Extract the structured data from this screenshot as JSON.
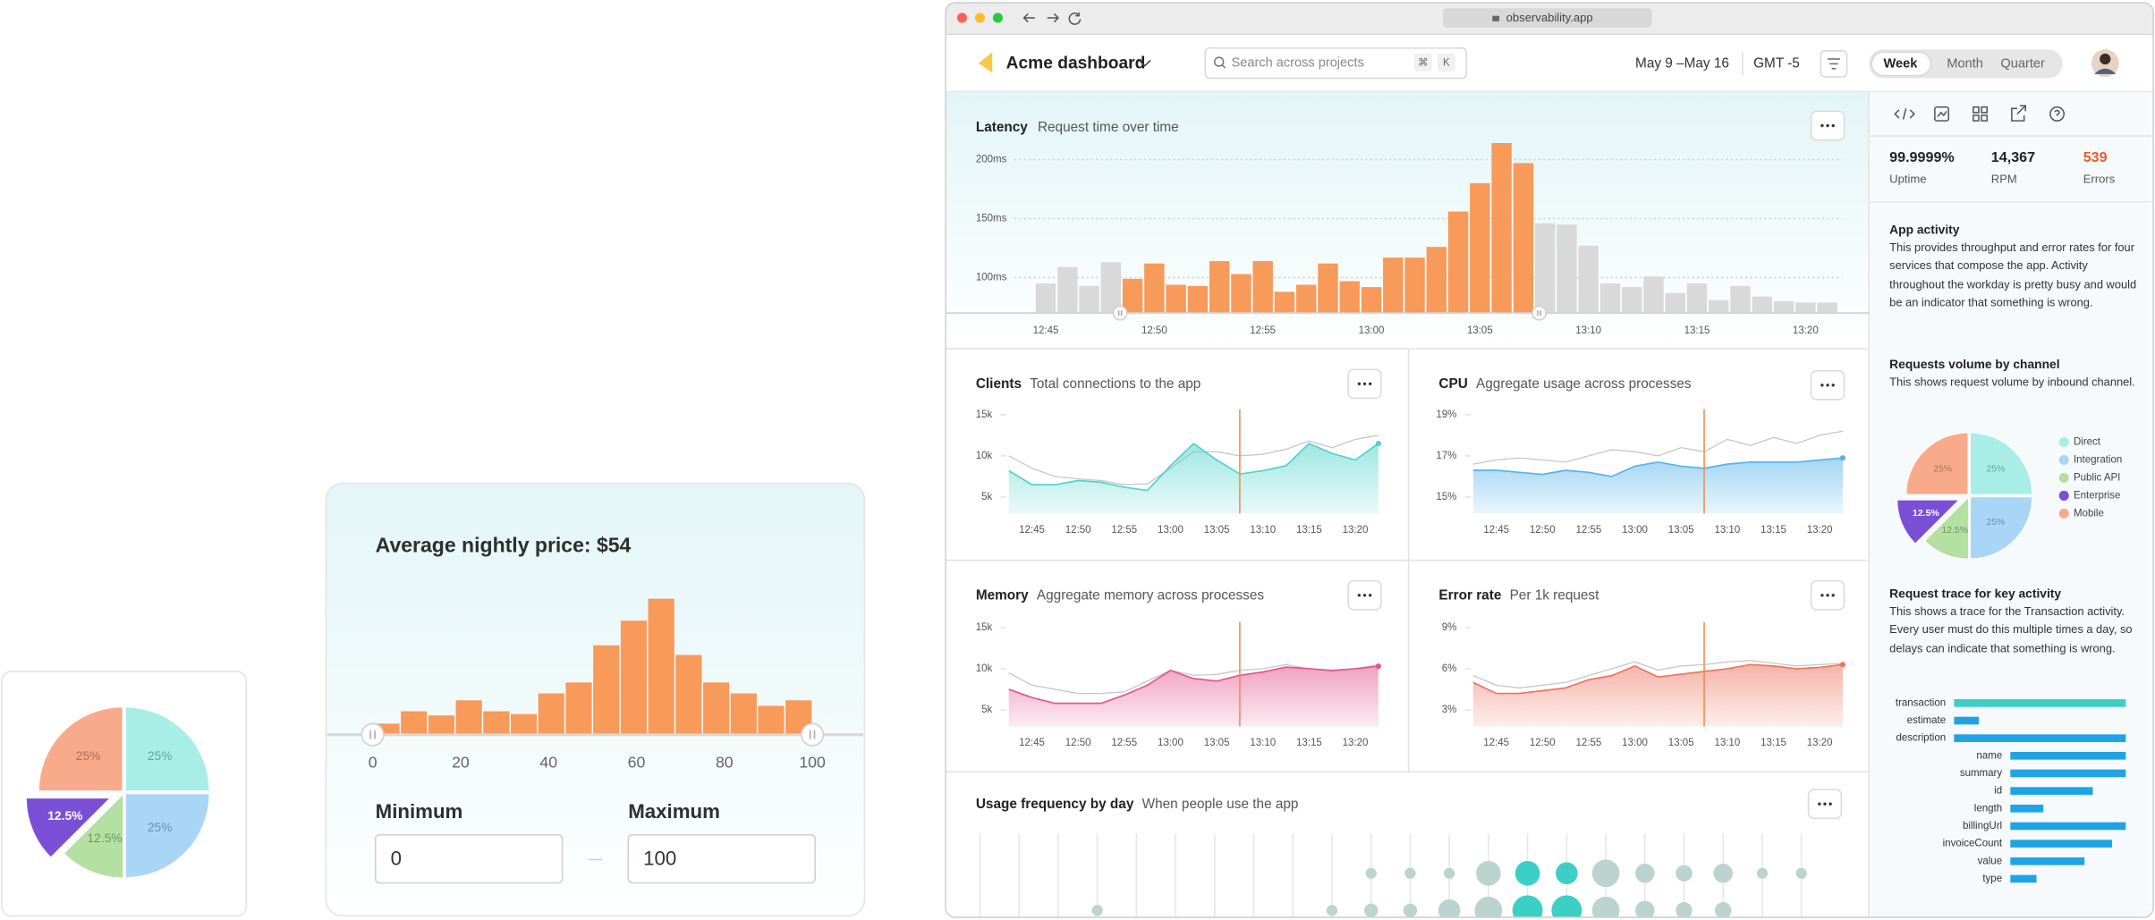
{
  "pie_card": {
    "type": "pie",
    "values": [
      25,
      25,
      12.5,
      12.5,
      25
    ],
    "value_labels": [
      "25%",
      "25%",
      "12.5%",
      "12.5%",
      "25%"
    ],
    "colors": [
      "#a8eee7",
      "#a9d5f6",
      "#b4e0a2",
      "#7a4fd6",
      "#f9aa8b"
    ],
    "label_colors": [
      "#6f9e9a",
      "#6a8fae",
      "#6f9462",
      "#ffffff",
      "#a8705c"
    ],
    "explode": [
      false,
      false,
      false,
      true,
      false
    ]
  },
  "price_card": {
    "title": "Average nightly price: $54",
    "histogram": {
      "type": "histogram",
      "bins": [
        0,
        6.25,
        12.5,
        18.75,
        25,
        31.25,
        37.5,
        43.75,
        50,
        56.25,
        62.5,
        68.75,
        75,
        81.25,
        87.5,
        93.75,
        100
      ],
      "values": [
        7,
        16,
        13,
        24,
        16,
        14,
        29,
        37,
        64,
        82,
        98,
        57,
        37,
        29,
        20,
        24
      ],
      "color": "#f89a5a",
      "xlim": [
        0,
        100
      ],
      "xticks": [
        0,
        20,
        40,
        60,
        80,
        100
      ],
      "ylim": [
        0,
        110
      ]
    },
    "min_label": "Minimum",
    "max_label": "Maximum",
    "min_value": "0",
    "max_value": "100"
  },
  "browser": {
    "url": "observability.app"
  },
  "header": {
    "title": "Acme dashboard",
    "search_placeholder": "Search across projects",
    "shortcut": [
      "⌘",
      "K"
    ],
    "date_range": "May 9 –May 16",
    "timezone": "GMT -5",
    "periods": [
      "Week",
      "Month",
      "Quarter"
    ],
    "active_period": 0
  },
  "latency": {
    "type": "bar",
    "title": "Latency",
    "subtitle": "Request time over time",
    "categories": [
      "12:45",
      null,
      null,
      null,
      null,
      "12:50",
      null,
      null,
      null,
      null,
      "12:55",
      null,
      null,
      null,
      null,
      "13:00",
      null,
      null,
      null,
      null,
      "13:05",
      null,
      null,
      null,
      null,
      "13:10",
      null,
      null,
      null,
      null,
      "13:15",
      null,
      null,
      null,
      null,
      "13:20",
      null
    ],
    "values": [
      95,
      109,
      93,
      113,
      99,
      112,
      94,
      93,
      114,
      103,
      114,
      88,
      94,
      112,
      97,
      92,
      117,
      117,
      126,
      156,
      180,
      214,
      197,
      146,
      145,
      127,
      95,
      92,
      101,
      87,
      95,
      81,
      93,
      84,
      80,
      79,
      79
    ],
    "colors": [
      "#d9d9d9",
      "#d9d9d9",
      "#d9d9d9",
      "#d9d9d9",
      "#f89a5a",
      "#f89a5a",
      "#f89a5a",
      "#f89a5a",
      "#f89a5a",
      "#f89a5a",
      "#f89a5a",
      "#f89a5a",
      "#f89a5a",
      "#f89a5a",
      "#f89a5a",
      "#f89a5a",
      "#f89a5a",
      "#f89a5a",
      "#f89a5a",
      "#f89a5a",
      "#f89a5a",
      "#f89a5a",
      "#f89a5a",
      "#d9d9d9",
      "#d9d9d9",
      "#d9d9d9",
      "#d9d9d9",
      "#d9d9d9",
      "#d9d9d9",
      "#d9d9d9",
      "#d9d9d9",
      "#d9d9d9",
      "#d9d9d9",
      "#d9d9d9",
      "#d9d9d9",
      "#d9d9d9",
      "#d9d9d9"
    ],
    "ylim": [
      70,
      220
    ],
    "yticks": [
      {
        "value": 200,
        "label": "200ms"
      },
      {
        "value": 150,
        "label": "150ms"
      },
      {
        "value": 100,
        "label": "100ms"
      }
    ],
    "grid": true
  },
  "panels": [
    {
      "type": "area",
      "title": "Clients",
      "subtitle": "Total connections to the app",
      "categories": [
        null,
        "12:45",
        null,
        "12:50",
        null,
        "12:55",
        null,
        "13:00",
        null,
        "13:05",
        null,
        "13:10",
        null,
        "13:15",
        null,
        "13:20",
        null
      ],
      "ylim": [
        3,
        16
      ],
      "yticks": [
        {
          "value": 15,
          "label": "15k"
        },
        {
          "value": 10,
          "label": "10k"
        },
        {
          "value": 5,
          "label": "5k"
        }
      ],
      "series": [
        {
          "color": "#4fd3ca",
          "area": true,
          "values": [
            8.2,
            6.5,
            6.5,
            7.0,
            6.8,
            6.2,
            5.8,
            8.8,
            11.5,
            9.5,
            7.8,
            8.2,
            8.8,
            11.5,
            10.3,
            9.5,
            11.5
          ]
        },
        {
          "color": "#c4c4c4",
          "area": false,
          "values": [
            10,
            8.5,
            7.5,
            7.2,
            7,
            6.5,
            6.6,
            8.5,
            10.5,
            10.5,
            10,
            10.2,
            10.8,
            11.8,
            11,
            12,
            12.5
          ]
        }
      ]
    },
    {
      "type": "area",
      "title": "CPU",
      "subtitle": "Aggregate usage across processes",
      "categories": [
        null,
        "12:45",
        null,
        "12:50",
        null,
        "12:55",
        null,
        "13:00",
        null,
        "13:05",
        null,
        "13:10",
        null,
        "13:15",
        null,
        "13:20",
        null
      ],
      "ylim": [
        14.2,
        19.4
      ],
      "yticks": [
        {
          "value": 19,
          "label": "19%"
        },
        {
          "value": 17,
          "label": "17%"
        },
        {
          "value": 15,
          "label": "15%"
        }
      ],
      "series": [
        {
          "color": "#55b3ea",
          "area": true,
          "values": [
            16.3,
            16.3,
            16.2,
            16.1,
            16.3,
            16.2,
            16.0,
            16.5,
            16.7,
            16.5,
            16.4,
            16.6,
            16.7,
            16.7,
            16.7,
            16.8,
            16.9
          ]
        },
        {
          "color": "#c4c4c4",
          "area": false,
          "values": [
            16.6,
            16.8,
            16.9,
            16.8,
            16.7,
            17.0,
            17.3,
            17.2,
            17.0,
            17.4,
            17.2,
            17.8,
            17.5,
            17.9,
            17.6,
            18.0,
            18.2
          ]
        }
      ]
    },
    {
      "type": "area",
      "title": "Memory",
      "subtitle": "Aggregate memory across processes",
      "categories": [
        null,
        "12:45",
        null,
        "12:50",
        null,
        "12:55",
        null,
        "13:00",
        null,
        "13:05",
        null,
        "13:10",
        null,
        "13:15",
        null,
        "13:20",
        null
      ],
      "ylim": [
        3,
        16
      ],
      "yticks": [
        {
          "value": 15,
          "label": "15k"
        },
        {
          "value": 10,
          "label": "10k"
        },
        {
          "value": 5,
          "label": "5k"
        }
      ],
      "series": [
        {
          "color": "#e2578f",
          "area": true,
          "values": [
            7.5,
            6.5,
            5.8,
            5.8,
            5.8,
            6.8,
            8.0,
            9.8,
            8.8,
            8.5,
            9.2,
            9.6,
            10.2,
            10.0,
            9.8,
            10.0,
            10.3
          ]
        },
        {
          "color": "#c4c4c4",
          "area": false,
          "values": [
            9.5,
            8,
            7.5,
            7,
            7,
            7.2,
            8.5,
            9.8,
            9.2,
            9.3,
            9.8,
            10,
            10.5,
            10,
            9.7,
            10,
            10.5
          ]
        }
      ]
    },
    {
      "type": "area",
      "title": "Error rate",
      "subtitle": "Per 1k request",
      "categories": [
        null,
        "12:45",
        null,
        "12:50",
        null,
        "12:55",
        null,
        "13:00",
        null,
        "13:05",
        null,
        "13:10",
        null,
        "13:15",
        null,
        "13:20",
        null
      ],
      "ylim": [
        1.8,
        9.6
      ],
      "yticks": [
        {
          "value": 9,
          "label": "9%"
        },
        {
          "value": 6,
          "label": "6%"
        },
        {
          "value": 3,
          "label": "3%"
        }
      ],
      "series": [
        {
          "color": "#ec7560",
          "area": true,
          "values": [
            5,
            4.2,
            4.2,
            4.4,
            4.6,
            5.2,
            5.5,
            6.2,
            5.4,
            5.6,
            5.8,
            6.0,
            6.3,
            6.2,
            6.0,
            6.1,
            6.3
          ]
        },
        {
          "color": "#c4c4c4",
          "area": false,
          "values": [
            5.5,
            4.8,
            4.6,
            4.8,
            5,
            5.5,
            6,
            6.5,
            5.9,
            6.2,
            6.3,
            6.5,
            6.6,
            6.4,
            6.2,
            6.3,
            6.4
          ]
        }
      ]
    }
  ],
  "usage": {
    "type": "bubble",
    "title": "Usage frequency by day",
    "subtitle": "When people use the app",
    "rows": [
      {
        "values": [
          null,
          null,
          null,
          null,
          null,
          null,
          null,
          null,
          null,
          null,
          4,
          4,
          4,
          9,
          9,
          8,
          10,
          7,
          6,
          7,
          4,
          4
        ],
        "colors": [
          null,
          null,
          null,
          null,
          null,
          null,
          null,
          null,
          null,
          null,
          "#bcd4d0",
          "#bcd4d0",
          "#bcd4d0",
          "#bcd4d0",
          "#3ccfc6",
          "#3ccfc6",
          "#bcd4d0",
          "#bcd4d0",
          "#bcd4d0",
          "#bcd4d0",
          "#bcd4d0",
          "#bcd4d0"
        ]
      },
      {
        "values": [
          null,
          null,
          null,
          4,
          null,
          null,
          null,
          null,
          null,
          4,
          5,
          5,
          8,
          10,
          11,
          11,
          10,
          7,
          6,
          6,
          null,
          null
        ],
        "colors": [
          null,
          null,
          null,
          "#bcd4d0",
          null,
          null,
          null,
          null,
          null,
          "#bcd4d0",
          "#bcd4d0",
          "#bcd4d0",
          "#bcd4d0",
          "#bcd4d0",
          "#3ccfc6",
          "#3ccfc6",
          "#bcd4d0",
          "#bcd4d0",
          "#bcd4d0",
          "#bcd4d0",
          null,
          null
        ]
      }
    ]
  },
  "sidebar": {
    "stats": [
      {
        "value": "99.9999%",
        "label": "Uptime"
      },
      {
        "value": "14,367",
        "label": "RPM"
      },
      {
        "value": "539",
        "label": "Errors",
        "color": "#f05a28"
      }
    ],
    "sections": [
      {
        "title": "App activity",
        "text": "This provides throughput and error rates for four services that compose the app. Activity throughout the workday is pretty busy and would be an indicator that something is wrong."
      },
      {
        "title": "Requests volume by channel",
        "text": "This shows request volume by inbound channel."
      },
      {
        "title": "Request trace for key activity",
        "text": "This shows a trace for the Transaction activity. Every user must do this multiple times a day, so delays can indicate that something is wrong."
      }
    ],
    "pie": {
      "type": "pie",
      "labels": [
        "Direct",
        "Integration",
        "Public API",
        "Enterprise",
        "Mobile"
      ],
      "values": [
        25,
        25,
        12.5,
        12.5,
        25
      ],
      "value_labels": [
        "25%",
        "25%",
        "12.5%",
        "12.5%",
        "25%"
      ],
      "colors": [
        "#a8eee7",
        "#a9d5f6",
        "#b4e0a2",
        "#7a4fd6",
        "#f9aa8b"
      ],
      "label_colors": [
        "#6f9e9a",
        "#6a8fae",
        "#6f9462",
        "#ffffff",
        "#a8705c"
      ],
      "explode": [
        false,
        false,
        false,
        true,
        false
      ]
    },
    "trace": {
      "type": "gantt",
      "categories": [
        "transaction",
        "estimate",
        "description",
        "name",
        "summary",
        "id",
        "length",
        "billingUrl",
        "invoiceCount",
        "value",
        "type"
      ],
      "ranges": [
        [
          0,
          125
        ],
        [
          0,
          18
        ],
        [
          0,
          125
        ],
        [
          41,
          125
        ],
        [
          41,
          125
        ],
        [
          41,
          101
        ],
        [
          41,
          65
        ],
        [
          41,
          125
        ],
        [
          41,
          115
        ],
        [
          41,
          95
        ],
        [
          41,
          60
        ]
      ],
      "colors": [
        "#3ccfc6",
        "#1ea4e6",
        "#1ea4e6",
        "#1ea4e6",
        "#1ea4e6",
        "#1ea4e6",
        "#1ea4e6",
        "#1ea4e6",
        "#1ea4e6",
        "#1ea4e6",
        "#1ea4e6"
      ],
      "xlim": [
        0,
        125
      ]
    }
  }
}
